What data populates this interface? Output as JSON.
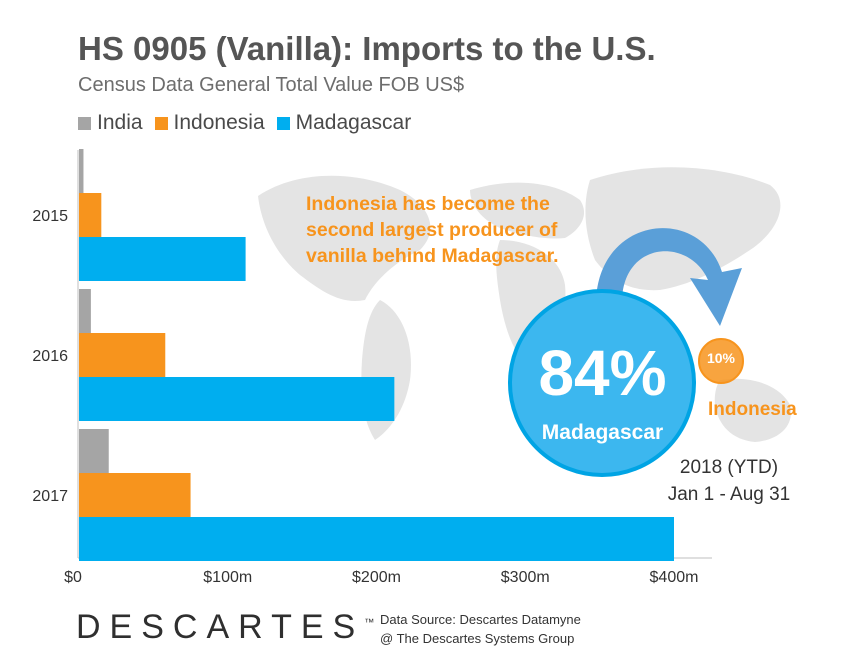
{
  "header": {
    "title": "HS 0905 (Vanilla): Imports to the U.S.",
    "subtitle": "Census Data General Total Value FOB US$"
  },
  "legend": [
    {
      "label": "India",
      "color": "#a5a5a5"
    },
    {
      "label": "Indonesia",
      "color": "#f7941d"
    },
    {
      "label": "Madagascar",
      "color": "#00aeef"
    }
  ],
  "chart_data": {
    "type": "bar",
    "orientation": "horizontal",
    "categories": [
      "2015",
      "2016",
      "2017"
    ],
    "series": [
      {
        "name": "India",
        "color": "#a5a5a5",
        "values": [
          3,
          8,
          20
        ]
      },
      {
        "name": "Indonesia",
        "color": "#f7941d",
        "values": [
          15,
          58,
          75
        ]
      },
      {
        "name": "Madagascar",
        "color": "#00aeef",
        "values": [
          112,
          212,
          400
        ]
      }
    ],
    "xticks": [
      "$0",
      "$100m",
      "$200m",
      "$300m",
      "$400m"
    ],
    "xlim": [
      0,
      400
    ],
    "grid": false,
    "legend_position": "top-left"
  },
  "callout": {
    "text": "Indonesia has become the second largest producer of vanilla behind Madagascar."
  },
  "share": {
    "madagascar_pct": "84%",
    "madagascar_label": "Madagascar",
    "indonesia_pct": "10%",
    "indonesia_label": "Indonesia",
    "period_year": "2018 (YTD)",
    "period_range": "Jan 1 - Aug 31"
  },
  "footer": {
    "logo_text": "DESCARTES",
    "logo_tm": "™",
    "source_line1": "Data Source: Descartes Datamyne",
    "source_line2": "@ The Descartes Systems Group"
  }
}
